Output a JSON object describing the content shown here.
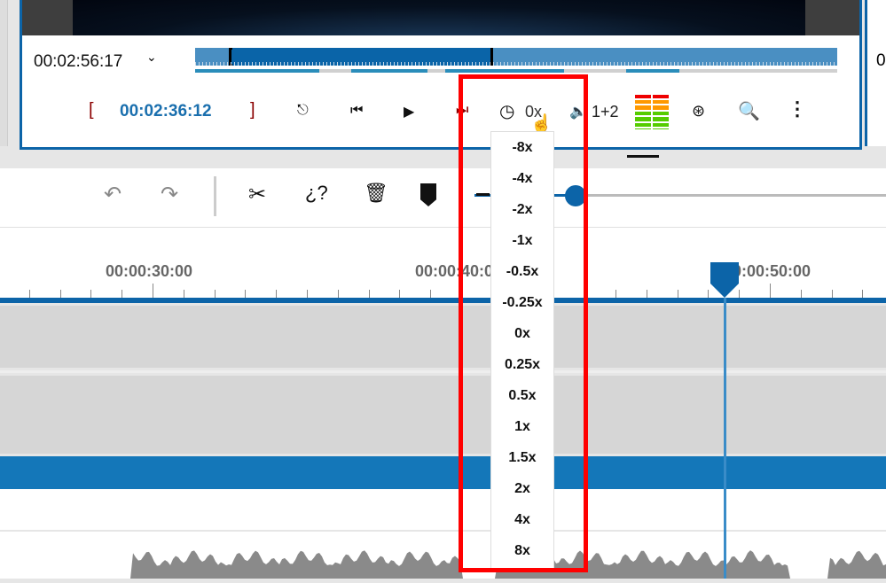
{
  "player": {
    "current_time": "00:02:56:17",
    "in_bracket": "[",
    "out_bracket": "]",
    "position_time": "00:02:36:12",
    "speed_label": "0x",
    "audio_channels": "1+2",
    "right_panel_partial": "0"
  },
  "toolbar": {
    "icons": [
      "undo-icon",
      "redo-icon",
      "scissors-icon",
      "unlink-icon",
      "trash-icon",
      "marker-icon",
      "zoom-slider"
    ],
    "zoom_level": 0.02
  },
  "ruler": {
    "labels": [
      "00:00:30:00",
      "00:00:40:00",
      "00:00:50:00"
    ]
  },
  "speed_menu": {
    "options": [
      "-8x",
      "-4x",
      "-2x",
      "-1x",
      "-0.5x",
      "-0.25x",
      "0x",
      "0.25x",
      "0.5x",
      "1x",
      "1.5x",
      "2x",
      "4x",
      "8x"
    ],
    "selected": "0x"
  },
  "colors": {
    "accent": "#0c64a8",
    "highlight": "#ff0000",
    "track": "#d6d6d6"
  }
}
